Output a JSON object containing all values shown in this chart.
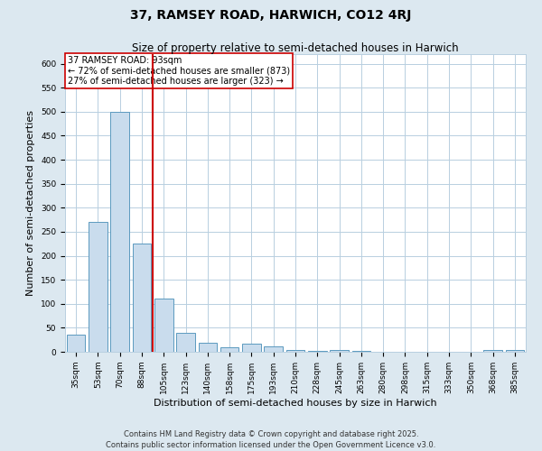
{
  "title": "37, RAMSEY ROAD, HARWICH, CO12 4RJ",
  "subtitle": "Size of property relative to semi-detached houses in Harwich",
  "xlabel": "Distribution of semi-detached houses by size in Harwich",
  "ylabel": "Number of semi-detached properties",
  "categories": [
    "35sqm",
    "53sqm",
    "70sqm",
    "88sqm",
    "105sqm",
    "123sqm",
    "140sqm",
    "158sqm",
    "175sqm",
    "193sqm",
    "210sqm",
    "228sqm",
    "245sqm",
    "263sqm",
    "280sqm",
    "298sqm",
    "315sqm",
    "333sqm",
    "350sqm",
    "368sqm",
    "385sqm"
  ],
  "values": [
    35,
    270,
    500,
    225,
    110,
    40,
    18,
    10,
    17,
    12,
    4,
    2,
    4,
    2,
    0,
    0,
    0,
    0,
    0,
    3,
    4
  ],
  "bar_color": "#c9dced",
  "bar_edge_color": "#5b9abf",
  "vline_x_index": 3,
  "vline_color": "#cc0000",
  "annotation_text": "37 RAMSEY ROAD: 93sqm\n← 72% of semi-detached houses are smaller (873)\n27% of semi-detached houses are larger (323) →",
  "annotation_box_facecolor": "#ffffff",
  "annotation_box_edgecolor": "#cc0000",
  "ylim": [
    0,
    620
  ],
  "yticks": [
    0,
    50,
    100,
    150,
    200,
    250,
    300,
    350,
    400,
    450,
    500,
    550,
    600
  ],
  "footer_line1": "Contains HM Land Registry data © Crown copyright and database right 2025.",
  "footer_line2": "Contains public sector information licensed under the Open Government Licence v3.0.",
  "bg_color": "#dce8f0",
  "plot_bg_color": "#ffffff",
  "grid_color": "#b8cfe0",
  "title_fontsize": 10,
  "subtitle_fontsize": 8.5,
  "axis_label_fontsize": 8,
  "tick_fontsize": 6.5,
  "annotation_fontsize": 7,
  "footer_fontsize": 6
}
